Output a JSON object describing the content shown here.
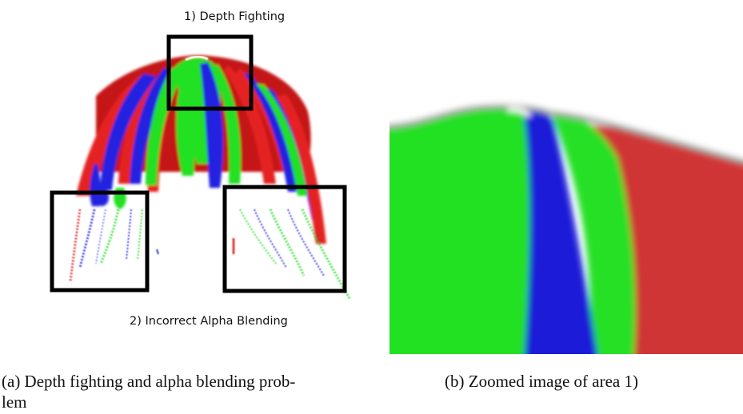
{
  "figure": {
    "panel_a": {
      "annotation_top": "1) Depth Fighting",
      "annotation_bottom": "2) Incorrect Alpha Blending",
      "caption": "(a) Depth fighting and alpha blending prob-\nlem"
    },
    "panel_b": {
      "caption": "(b) Zoomed image of area 1)"
    },
    "colors": {
      "red": "#e02020",
      "green": "#22e022",
      "blue": "#1c1ce0",
      "box": "#000000"
    }
  }
}
